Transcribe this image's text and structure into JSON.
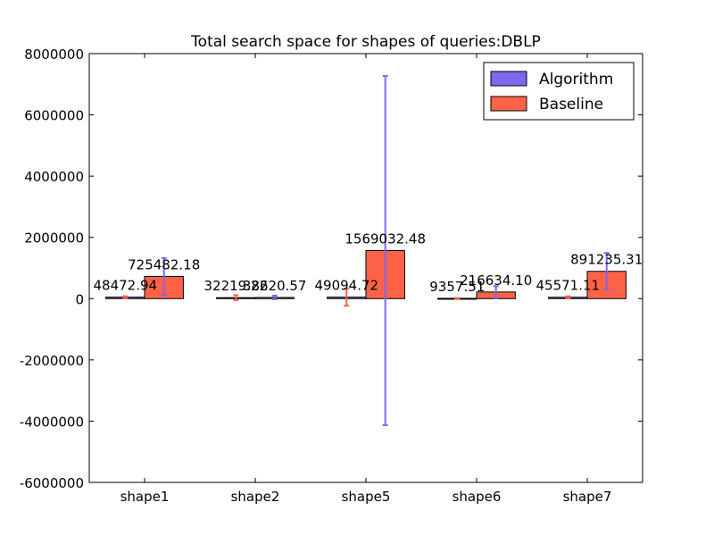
{
  "chart_data": {
    "type": "bar",
    "title": "Total search space for shapes of queries:DBLP",
    "xlabel": "",
    "ylabel": "",
    "categories": [
      "shape1",
      "shape2",
      "shape5",
      "shape6",
      "shape7"
    ],
    "ylim": [
      -6000000,
      8000000
    ],
    "yticks": [
      "-6000000",
      "-4000000",
      "-2000000",
      "0",
      "2000000",
      "4000000",
      "6000000",
      "8000000"
    ],
    "legend_position": "top-right",
    "series": [
      {
        "name": "Algorithm",
        "color": "#7b68ee",
        "values": [
          48472.94,
          32219.22,
          49094.72,
          9357.51,
          45571.11
        ],
        "labels": [
          "48472.94",
          "32219.22",
          "49094.72",
          "9357.51",
          "45571.11"
        ],
        "error": [
          30000,
          80000,
          280000,
          10000,
          30000
        ],
        "error_color": "#ff6347"
      },
      {
        "name": "Baseline",
        "color": "#ff6347",
        "values": [
          725482.18,
          38620.57,
          1569032.48,
          216634.1,
          891235.31
        ],
        "labels": [
          "725482.18",
          "38620.57",
          "1569032.48",
          "216634.10",
          "891235.31"
        ],
        "error": [
          600000,
          60000,
          5700000,
          190000,
          600000
        ],
        "error_color": "#7b68ee"
      }
    ]
  }
}
